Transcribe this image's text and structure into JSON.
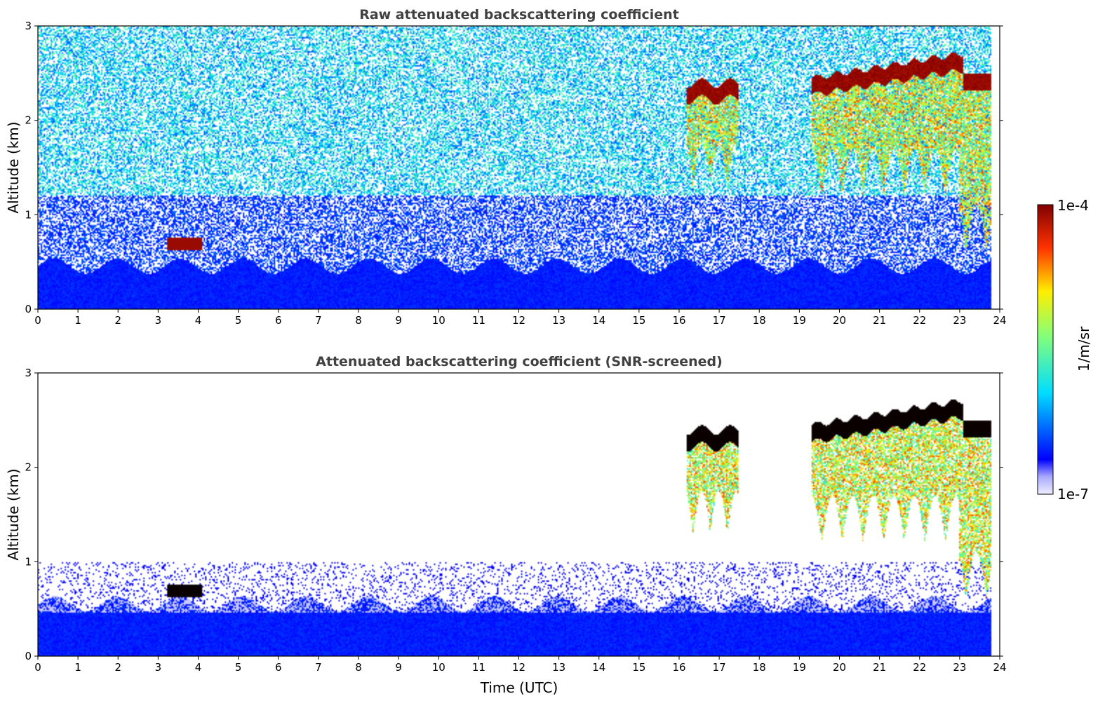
{
  "chart_data": [
    {
      "type": "heatmap",
      "title": "Raw attenuated backscattering coefficient",
      "xlabel": "",
      "ylabel": "Altitude (km)",
      "xlim": [
        0,
        24
      ],
      "ylim": [
        0,
        3
      ],
      "x_ticks": [
        "0",
        "1",
        "2",
        "3",
        "4",
        "5",
        "6",
        "7",
        "8",
        "9",
        "10",
        "11",
        "12",
        "13",
        "14",
        "15",
        "16",
        "17",
        "18",
        "19",
        "20",
        "21",
        "22",
        "23",
        "24"
      ],
      "y_ticks": [
        "0",
        "1",
        "2",
        "3"
      ],
      "data_end_hour": 23.8,
      "features": [
        {
          "kind": "boundary_layer",
          "x": [
            0,
            23.8
          ],
          "top_km": 0.45
        },
        {
          "kind": "noise_speckle",
          "x": [
            0,
            23.8
          ],
          "y": [
            0.45,
            3.0
          ]
        },
        {
          "kind": "cloud",
          "x": [
            3.2,
            4.1
          ],
          "y": [
            0.62,
            0.75
          ]
        },
        {
          "kind": "cloud",
          "x": [
            16.2,
            17.5
          ],
          "y": [
            2.2,
            2.4
          ]
        },
        {
          "kind": "cloud",
          "x": [
            19.3,
            23.1
          ],
          "y": [
            2.4,
            2.75
          ]
        },
        {
          "kind": "precipitation_virga",
          "x": [
            16.2,
            23.8
          ],
          "y": [
            0.5,
            2.5
          ]
        }
      ]
    },
    {
      "type": "heatmap",
      "title": "Attenuated backscattering coefficient (SNR-screened)",
      "xlabel": "Time (UTC)",
      "ylabel": "Altitude (km)",
      "xlim": [
        0,
        24
      ],
      "ylim": [
        0,
        3
      ],
      "x_ticks": [
        "0",
        "1",
        "2",
        "3",
        "4",
        "5",
        "6",
        "7",
        "8",
        "9",
        "10",
        "11",
        "12",
        "13",
        "14",
        "15",
        "16",
        "17",
        "18",
        "19",
        "20",
        "21",
        "22",
        "23",
        "24"
      ],
      "y_ticks": [
        "0",
        "1",
        "2",
        "3"
      ],
      "data_end_hour": 23.8,
      "features": [
        {
          "kind": "boundary_layer",
          "x": [
            0,
            23.8
          ],
          "top_km": 0.55
        },
        {
          "kind": "cloud",
          "x": [
            3.2,
            4.1
          ],
          "y": [
            0.62,
            0.75
          ]
        },
        {
          "kind": "cloud",
          "x": [
            16.2,
            17.5
          ],
          "y": [
            2.2,
            2.4
          ]
        },
        {
          "kind": "cloud",
          "x": [
            19.3,
            23.1
          ],
          "y": [
            2.4,
            2.75
          ]
        },
        {
          "kind": "precipitation_virga",
          "x": [
            16.2,
            23.8
          ],
          "y": [
            0.5,
            2.5
          ]
        }
      ]
    }
  ],
  "colorbar": {
    "label": "1/m/sr",
    "min_label": "1e-7",
    "max_label": "1e-4",
    "scale": "log",
    "colormap": "jet"
  }
}
